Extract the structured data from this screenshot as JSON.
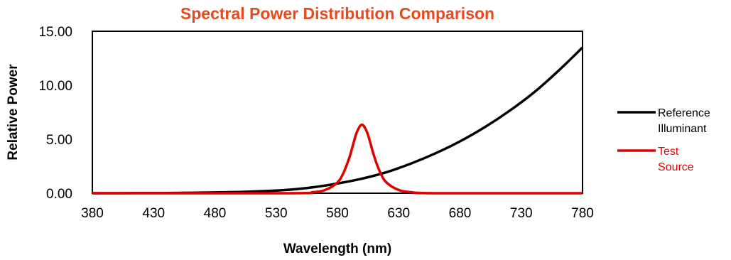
{
  "chart_data": {
    "type": "line",
    "title": "Spectral Power Distribution Comparison",
    "xlabel": "Wavelength (nm)",
    "ylabel": "Relative Power",
    "xlim": [
      380,
      780
    ],
    "ylim": [
      0,
      15
    ],
    "x_ticks": [
      "380",
      "430",
      "480",
      "530",
      "580",
      "630",
      "680",
      "730",
      "780"
    ],
    "y_ticks": [
      "0.00",
      "5.00",
      "10.00",
      "15.00"
    ],
    "grid": false,
    "legend_position": "right",
    "series": [
      {
        "name": [
          "Reference",
          "Illuminant"
        ],
        "color": "#000000",
        "x": [
          380,
          400,
          420,
          440,
          460,
          480,
          500,
          520,
          540,
          560,
          580,
          600,
          620,
          640,
          660,
          680,
          700,
          720,
          740,
          760,
          780
        ],
        "y": [
          0.0,
          0.0,
          0.01,
          0.02,
          0.04,
          0.07,
          0.12,
          0.2,
          0.32,
          0.55,
          0.9,
          1.35,
          1.95,
          2.75,
          3.7,
          4.8,
          6.1,
          7.6,
          9.3,
          11.3,
          13.5
        ]
      },
      {
        "name": [
          "Test",
          "Source"
        ],
        "color": "#e00000",
        "x": [
          380,
          540,
          560,
          570,
          580,
          585,
          590,
          593,
          596,
          600,
          604,
          607,
          610,
          615,
          620,
          630,
          640,
          660,
          780
        ],
        "y": [
          0.0,
          0.0,
          0.1,
          0.3,
          1.0,
          1.9,
          3.4,
          4.6,
          5.7,
          6.35,
          5.7,
          4.6,
          3.4,
          1.9,
          1.0,
          0.3,
          0.1,
          0.0,
          0.0
        ]
      }
    ]
  },
  "colors": {
    "title": "#e8491d",
    "frame": "#000000"
  }
}
